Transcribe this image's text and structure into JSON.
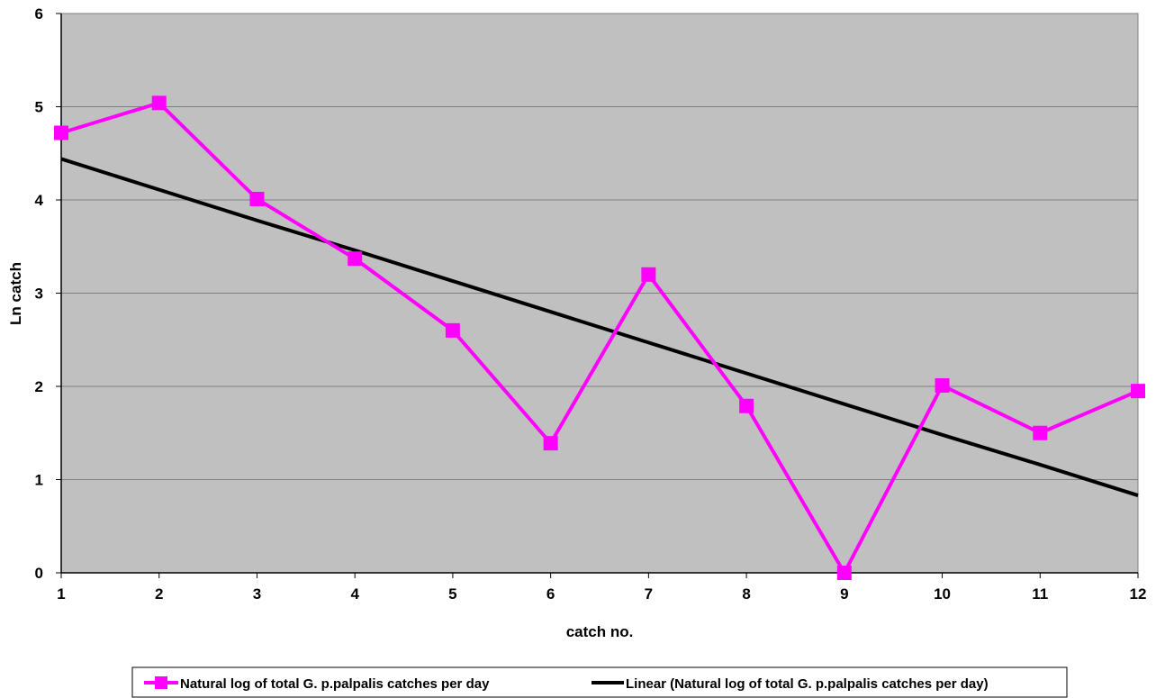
{
  "chart_data": {
    "type": "line",
    "title": "",
    "xlabel": "catch no.",
    "ylabel": "Ln catch",
    "x": [
      1,
      2,
      3,
      4,
      5,
      6,
      7,
      8,
      9,
      10,
      11,
      12
    ],
    "xlim": [
      1,
      12
    ],
    "ylim": [
      0,
      6
    ],
    "yticks": [
      0,
      1,
      2,
      3,
      4,
      5,
      6
    ],
    "grid": "horizontal",
    "legend_position": "bottom",
    "plot_background": "#c0c0c0",
    "series": [
      {
        "name": "Natural log of total G. p.palpalis catches per day",
        "color": "#ff00ff",
        "marker": "square",
        "values": [
          4.72,
          5.04,
          4.01,
          3.37,
          2.6,
          1.39,
          3.2,
          1.79,
          0.0,
          2.01,
          1.5,
          1.95
        ]
      },
      {
        "name": "Linear (Natural log of total G. p.palpalis catches per day)",
        "color": "#000000",
        "marker": "none",
        "trendline": true,
        "values": [
          4.44,
          4.11,
          3.78,
          3.46,
          3.13,
          2.8,
          2.47,
          2.14,
          1.81,
          1.48,
          1.16,
          0.83
        ]
      }
    ]
  }
}
